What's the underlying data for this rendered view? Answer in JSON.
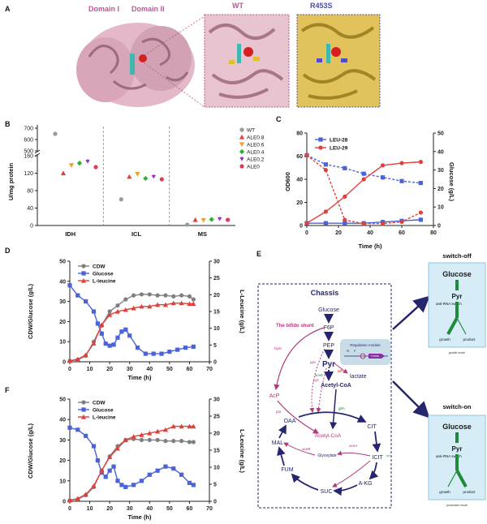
{
  "panel_labels": [
    "A",
    "B",
    "C",
    "D",
    "E",
    "F"
  ],
  "panel_a": {
    "domain1": "Domain I",
    "domain2": "Domain II",
    "wt": "WT",
    "mutant": "R453S"
  },
  "colors": {
    "wt_gray": "#8a8a8a",
    "pink_text": "#c2559a",
    "wt_title": "#c2559a",
    "mutant_title": "#4d4fa3",
    "blue": "#4a63d8",
    "red": "#e0403a",
    "gray": "#7f7f7f",
    "navy": "#26266e",
    "magenta": "#b03a7e",
    "green": "#1f8a3b",
    "switch_bg": "#d6ecf6"
  },
  "chart_data": [
    {
      "panel": "B",
      "type": "scatter",
      "ylabel": "U/mg protein",
      "categories": [
        "IDH",
        "ICL",
        "MS"
      ],
      "yticks_top": [
        "500",
        "600",
        "700"
      ],
      "yticks_bottom": [
        "0",
        "40",
        "80",
        "120",
        "160"
      ],
      "series": [
        {
          "name": "WT",
          "values": [
            650,
            60,
            2
          ]
        },
        {
          "name": "ALE0.8",
          "values": [
            120,
            112,
            13
          ]
        },
        {
          "name": "ALE0.6",
          "values": [
            138,
            118,
            12
          ]
        },
        {
          "name": "ALE0.4",
          "values": [
            143,
            108,
            14
          ]
        },
        {
          "name": "ALE0.2",
          "values": [
            147,
            112,
            15
          ]
        },
        {
          "name": "ALE0",
          "values": [
            134,
            106,
            13
          ]
        }
      ]
    },
    {
      "panel": "C",
      "type": "line",
      "xlabel": "Time (h)",
      "ylabel": "OD600",
      "ylabel_right": "Glucose (g/L)",
      "xlim": [
        0,
        80
      ],
      "ylim": [
        0,
        80
      ],
      "ylim_right": [
        0,
        50
      ],
      "xticks": [
        "0",
        "20",
        "40",
        "60",
        "80"
      ],
      "yticks": [
        "0",
        "20",
        "40",
        "60",
        "80"
      ],
      "yticks_right": [
        "0",
        "10",
        "20",
        "30",
        "40",
        "50"
      ],
      "series": [
        {
          "name": "LEU-28",
          "x": [
            0,
            12,
            24,
            36,
            48,
            60,
            72
          ],
          "od": [
            2,
            2,
            2,
            2,
            3,
            4,
            5
          ],
          "glucose": [
            38,
            33,
            31,
            28,
            26,
            24,
            23
          ]
        },
        {
          "name": "LEU-29",
          "x": [
            0,
            12,
            24,
            36,
            48,
            60,
            72
          ],
          "od": [
            2,
            12,
            25,
            40,
            52,
            54,
            55
          ],
          "glucose": [
            38,
            30,
            3,
            1,
            1,
            2,
            7
          ]
        }
      ]
    },
    {
      "panel": "D",
      "type": "line",
      "xlabel": "Time (h)",
      "ylabel": "CDW/Glucose (g/L)",
      "ylabel_right": "L-Leucine (g/L)",
      "xlim": [
        0,
        70
      ],
      "ylim": [
        0,
        50
      ],
      "ylim_right": [
        0,
        30
      ],
      "xticks": [
        "0",
        "10",
        "20",
        "30",
        "40",
        "50",
        "60",
        "70"
      ],
      "yticks": [
        "0",
        "10",
        "20",
        "30",
        "40",
        "50"
      ],
      "yticks_right": [
        "0",
        "5",
        "10",
        "15",
        "20",
        "25",
        "30"
      ],
      "series": [
        {
          "name": "CDW",
          "x": [
            0,
            4,
            8,
            12,
            16,
            20,
            24,
            28,
            32,
            36,
            40,
            44,
            48,
            52,
            56,
            60,
            62
          ],
          "values": [
            0.5,
            1,
            3,
            10,
            18,
            25,
            28,
            31,
            33,
            33.5,
            33.5,
            33,
            33,
            32.5,
            33,
            32.5,
            31
          ]
        },
        {
          "name": "Glucose",
          "x": [
            0,
            4,
            8,
            12,
            14,
            16,
            18,
            20,
            22,
            24,
            26,
            28,
            30,
            34,
            38,
            42,
            46,
            50,
            54,
            58,
            62
          ],
          "values": [
            38,
            33,
            30,
            25,
            19,
            14,
            9,
            8,
            8.5,
            12,
            15,
            16,
            13,
            7,
            4,
            4,
            4,
            5,
            6,
            7,
            7.5
          ]
        },
        {
          "name": "L-leucine",
          "x": [
            0,
            4,
            8,
            12,
            16,
            20,
            24,
            28,
            32,
            36,
            40,
            44,
            48,
            52,
            56,
            60,
            62
          ],
          "values": [
            0.3,
            0.8,
            2,
            5.5,
            11,
            14,
            15,
            15.5,
            16,
            16.5,
            16.5,
            17,
            17,
            17.5,
            17.5,
            17.3,
            17.3
          ]
        }
      ]
    },
    {
      "panel": "F",
      "type": "line",
      "xlabel": "Time (h)",
      "ylabel": "CDW/Glucose (g/L)",
      "ylabel_right": "L-Leucine (g/L)",
      "xlim": [
        0,
        70
      ],
      "ylim": [
        0,
        50
      ],
      "ylim_right": [
        0,
        30
      ],
      "xticks": [
        "0",
        "10",
        "20",
        "30",
        "40",
        "50",
        "60",
        "70"
      ],
      "yticks": [
        "0",
        "10",
        "20",
        "30",
        "40",
        "50"
      ],
      "yticks_right": [
        "0",
        "5",
        "10",
        "15",
        "20",
        "25",
        "30"
      ],
      "series": [
        {
          "name": "CDW",
          "x": [
            0,
            4,
            8,
            12,
            16,
            20,
            24,
            28,
            32,
            36,
            40,
            44,
            48,
            52,
            56,
            60,
            62
          ],
          "values": [
            0.5,
            1,
            3,
            7,
            15,
            22,
            27,
            30,
            30.5,
            30,
            30,
            30,
            29.5,
            29.5,
            29.5,
            29,
            29
          ]
        },
        {
          "name": "Glucose",
          "x": [
            0,
            4,
            8,
            12,
            14,
            16,
            18,
            20,
            22,
            24,
            26,
            28,
            32,
            36,
            40,
            44,
            48,
            52,
            56,
            60,
            62
          ],
          "values": [
            36,
            35,
            32,
            27,
            20,
            14,
            12,
            15,
            17,
            10,
            8,
            7,
            8,
            10,
            13,
            15,
            17,
            16,
            13,
            9,
            8
          ]
        },
        {
          "name": "L-leucine",
          "x": [
            0,
            4,
            8,
            12,
            16,
            20,
            24,
            28,
            32,
            36,
            40,
            44,
            48,
            52,
            56,
            60,
            62
          ],
          "values": [
            0.3,
            0.8,
            2,
            4.5,
            9,
            13,
            15.5,
            18,
            19,
            19.5,
            20,
            20.5,
            21,
            22,
            22,
            22,
            22
          ]
        }
      ]
    }
  ],
  "panel_e": {
    "title": "Chassis",
    "nodes": {
      "glucose": "Glucose",
      "f6p": "F6P",
      "pep": "PEP",
      "pyr": "Pyr",
      "acetylcoa": "Acetyl-CoA",
      "acetylcoa2": "Acetyl-CoA",
      "oaa": "OAA",
      "cit": "CIT",
      "icit": "ICIT",
      "akg": "A-KG",
      "suc": "SUC",
      "fum": "FUM",
      "mal": "MAL",
      "glyoxylate": "Glyoxylate",
      "acp": "AcP",
      "lactate": "lactate"
    },
    "labels": {
      "bifido": "The bifido shunt",
      "xfpk": "fxpK",
      "pta": "pta",
      "pps": "pps",
      "pyc": "pyc",
      "acee": "aceE",
      "ldh": "ldh",
      "glta": "gltA",
      "acea": "aceA",
      "aceb": "aceB",
      "icd": "icd",
      "regulation": "Regulation module",
      "pl": "PL",
      "promoter": "P",
      "tetr": "TTl8/84"
    },
    "switch_off": {
      "header": "switch-off",
      "glucose": "Glucose",
      "pyr": "Pyr",
      "switch": "anti-RNA switch",
      "growth": "growth",
      "product": "product",
      "mode": "growth mode"
    },
    "switch_on": {
      "header": "switch-on",
      "glucose": "Glucose",
      "pyr": "Pyr",
      "switch": "anti-RNA switch",
      "growth": "growth",
      "product": "product",
      "mode": "production mode"
    }
  }
}
